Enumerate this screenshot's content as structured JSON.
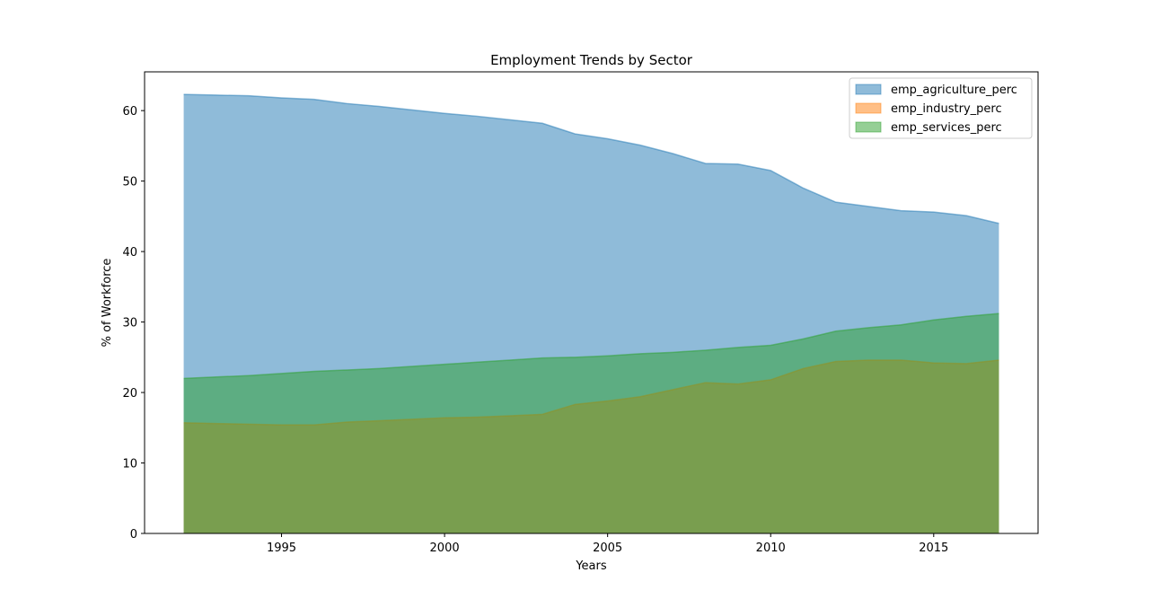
{
  "chart_data": {
    "type": "area",
    "title": "Employment Trends by Sector",
    "xlabel": "Years",
    "ylabel": "% of Workforce",
    "xlim": [
      1990.8,
      2018.2
    ],
    "ylim": [
      0,
      65.5
    ],
    "xticks": [
      1995,
      2000,
      2005,
      2010,
      2015
    ],
    "yticks": [
      0,
      10,
      20,
      30,
      40,
      50,
      60
    ],
    "grid": false,
    "legend_position": "top-right",
    "x": [
      1992,
      1993,
      1994,
      1995,
      1996,
      1997,
      1998,
      1999,
      2000,
      2001,
      2002,
      2003,
      2004,
      2005,
      2006,
      2007,
      2008,
      2009,
      2010,
      2011,
      2012,
      2013,
      2014,
      2015,
      2016,
      2017
    ],
    "series": [
      {
        "name": "emp_agriculture_perc",
        "color": "#1f77b4",
        "values": [
          62.3,
          62.2,
          62.1,
          61.8,
          61.6,
          61.0,
          60.6,
          60.1,
          59.6,
          59.2,
          58.7,
          58.2,
          56.7,
          56.0,
          55.1,
          53.9,
          52.5,
          52.4,
          51.5,
          49.0,
          47.0,
          46.4,
          45.8,
          45.6,
          45.1,
          44.0
        ]
      },
      {
        "name": "emp_industry_perc",
        "color": "#ff7f0e",
        "values": [
          15.7,
          15.6,
          15.5,
          15.4,
          15.4,
          15.8,
          16.0,
          16.2,
          16.4,
          16.5,
          16.7,
          16.9,
          18.3,
          18.8,
          19.4,
          20.4,
          21.4,
          21.2,
          21.8,
          23.4,
          24.4,
          24.6,
          24.6,
          24.2,
          24.1,
          24.6
        ]
      },
      {
        "name": "emp_services_perc",
        "color": "#2ca02c",
        "values": [
          22.0,
          22.2,
          22.4,
          22.7,
          23.0,
          23.2,
          23.4,
          23.7,
          24.0,
          24.3,
          24.6,
          24.9,
          25.0,
          25.2,
          25.5,
          25.7,
          26.0,
          26.4,
          26.7,
          27.6,
          28.7,
          29.2,
          29.6,
          30.3,
          30.8,
          31.2
        ]
      }
    ]
  }
}
